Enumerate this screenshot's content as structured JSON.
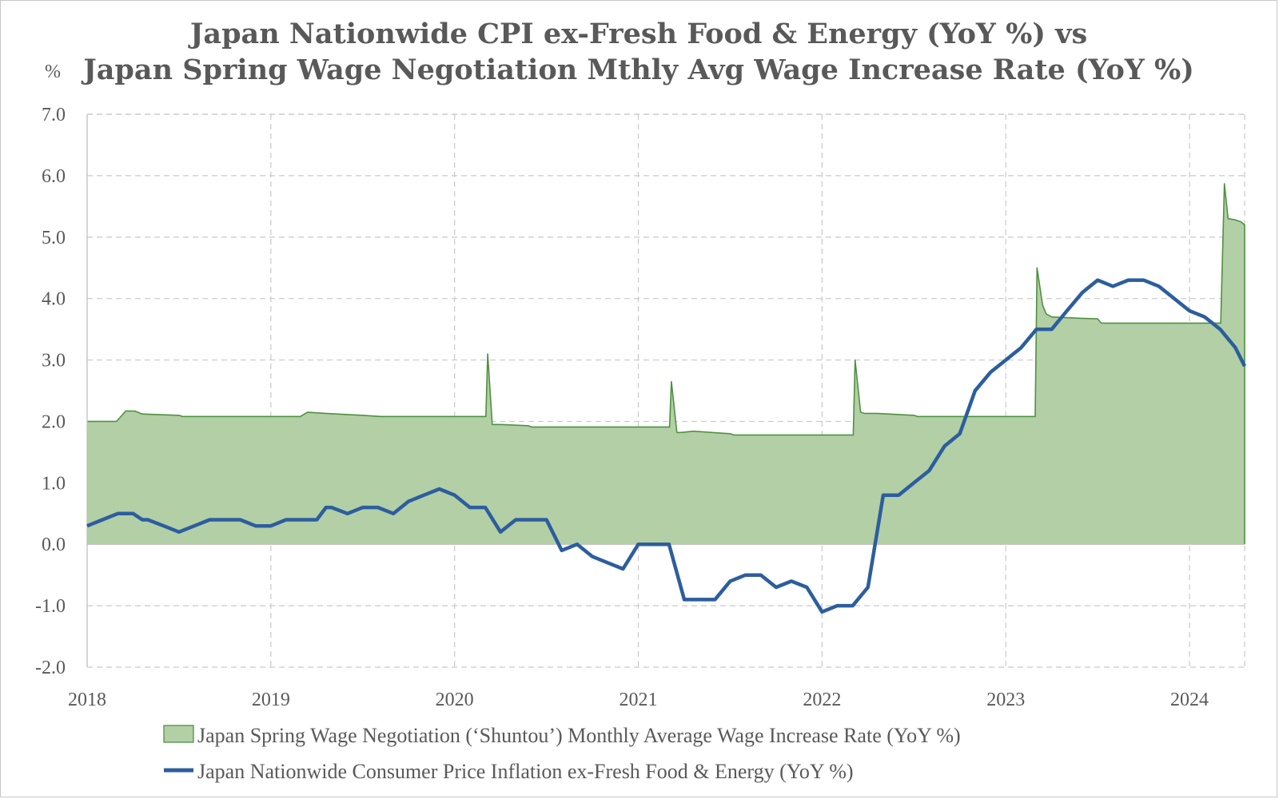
{
  "chart_data": {
    "type": "area+line",
    "title_line1": "Japan Nationwide CPI ex-Fresh Food & Energy (YoY %) vs",
    "title_line2": "Japan Spring Wage Negotiation Mthly Avg Wage Increase Rate (YoY %)",
    "ylabel": "%",
    "ylim": [
      -2.0,
      7.0
    ],
    "xlim": [
      2018.0,
      2024.3
    ],
    "y_ticks": [
      "-2.0",
      "-1.0",
      "0.0",
      "1.0",
      "2.0",
      "3.0",
      "4.0",
      "5.0",
      "6.0",
      "7.0"
    ],
    "x_ticks": [
      "2018",
      "2019",
      "2020",
      "2021",
      "2022",
      "2023",
      "2024"
    ],
    "colors": {
      "wage_fill": "#b3cfa6",
      "wage_line": "#4e9140",
      "cpi_line": "#2c5e9e"
    },
    "series": [
      {
        "name": "Japan Spring Wage Negotiation (‘Shuntou’) Monthly Average Wage Increase Rate (YoY %)",
        "style": "area",
        "x": [
          2018.0,
          2018.16,
          2018.21,
          2018.26,
          2018.3,
          2018.5,
          2018.52,
          2019.0,
          2019.16,
          2019.2,
          2019.3,
          2019.5,
          2019.6,
          2020.0,
          2020.17,
          2020.18,
          2020.205,
          2020.22,
          2020.25,
          2020.4,
          2020.42,
          2021.0,
          2021.17,
          2021.18,
          2021.21,
          2021.23,
          2021.3,
          2021.5,
          2021.52,
          2022.0,
          2022.17,
          2022.18,
          2022.21,
          2022.23,
          2022.3,
          2022.5,
          2022.52,
          2023.0,
          2023.16,
          2023.17,
          2023.2,
          2023.22,
          2023.25,
          2023.4,
          2023.5,
          2023.52,
          2024.0,
          2024.16,
          2024.17,
          2024.19,
          2024.21,
          2024.25,
          2024.28,
          2024.3
        ],
        "values": [
          2.0,
          2.0,
          2.17,
          2.17,
          2.12,
          2.1,
          2.08,
          2.08,
          2.08,
          2.15,
          2.13,
          2.1,
          2.08,
          2.08,
          2.08,
          3.1,
          1.95,
          1.95,
          1.95,
          1.93,
          1.91,
          1.91,
          1.91,
          2.65,
          1.82,
          1.82,
          1.84,
          1.8,
          1.78,
          1.78,
          1.78,
          3.0,
          2.15,
          2.13,
          2.13,
          2.1,
          2.08,
          2.08,
          2.08,
          4.5,
          3.9,
          3.75,
          3.7,
          3.68,
          3.67,
          3.6,
          3.6,
          3.6,
          3.6,
          5.87,
          5.3,
          5.28,
          5.25,
          5.2
        ]
      },
      {
        "name": "Japan Nationwide Consumer Price Inflation ex-Fresh Food & Energy (YoY %)",
        "style": "line",
        "x": [
          2018.0,
          2018.083,
          2018.167,
          2018.25,
          2018.3,
          2018.33,
          2018.417,
          2018.5,
          2018.583,
          2018.667,
          2018.75,
          2018.833,
          2018.917,
          2019.0,
          2019.083,
          2019.167,
          2019.25,
          2019.3,
          2019.33,
          2019.417,
          2019.5,
          2019.583,
          2019.667,
          2019.75,
          2019.833,
          2019.917,
          2020.0,
          2020.083,
          2020.167,
          2020.25,
          2020.333,
          2020.417,
          2020.5,
          2020.583,
          2020.667,
          2020.75,
          2020.833,
          2020.917,
          2021.0,
          2021.083,
          2021.167,
          2021.25,
          2021.333,
          2021.417,
          2021.5,
          2021.583,
          2021.667,
          2021.75,
          2021.833,
          2021.917,
          2022.0,
          2022.083,
          2022.167,
          2022.25,
          2022.333,
          2022.417,
          2022.5,
          2022.583,
          2022.667,
          2022.75,
          2022.833,
          2022.917,
          2023.0,
          2023.083,
          2023.167,
          2023.25,
          2023.333,
          2023.417,
          2023.5,
          2023.583,
          2023.667,
          2023.75,
          2023.833,
          2023.917,
          2024.0,
          2024.083,
          2024.167,
          2024.25,
          2024.3
        ],
        "values": [
          0.3,
          0.4,
          0.5,
          0.5,
          0.4,
          0.4,
          0.3,
          0.2,
          0.3,
          0.4,
          0.4,
          0.4,
          0.3,
          0.3,
          0.4,
          0.4,
          0.4,
          0.6,
          0.6,
          0.5,
          0.6,
          0.6,
          0.5,
          0.7,
          0.8,
          0.9,
          0.8,
          0.6,
          0.6,
          0.2,
          0.4,
          0.4,
          0.4,
          -0.1,
          0.0,
          -0.2,
          -0.3,
          -0.4,
          0.0,
          0.0,
          0.0,
          -0.9,
          -0.9,
          -0.9,
          -0.6,
          -0.5,
          -0.5,
          -0.7,
          -0.6,
          -0.7,
          -1.1,
          -1.0,
          -1.0,
          -0.7,
          0.8,
          0.8,
          1.0,
          1.2,
          1.6,
          1.8,
          2.5,
          2.8,
          3.0,
          3.2,
          3.5,
          3.5,
          3.8,
          4.1,
          4.3,
          4.2,
          4.3,
          4.3,
          4.2,
          4.0,
          3.8,
          3.7,
          3.5,
          3.2,
          2.9
        ]
      }
    ],
    "legend": {
      "placement": "bottom",
      "entries": [
        "Japan Spring Wage Negotiation (‘Shuntou’) Monthly Average Wage Increase Rate (YoY %)",
        "Japan Nationwide Consumer Price Inflation ex-Fresh Food & Energy (YoY %)"
      ]
    }
  }
}
